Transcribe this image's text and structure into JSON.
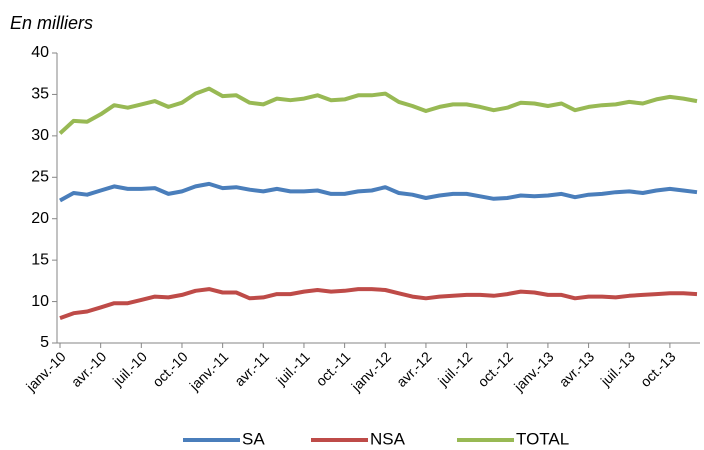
{
  "chart_data": {
    "type": "line",
    "subtitle": "En milliers",
    "categories": [
      "janv.-10",
      null,
      null,
      "avr.-10",
      null,
      null,
      "juil.-10",
      null,
      null,
      "oct.-10",
      null,
      null,
      "janv.-11",
      null,
      null,
      "avr.-11",
      null,
      null,
      "juil.-11",
      null,
      null,
      "oct.-11",
      null,
      null,
      "janv.-12",
      null,
      null,
      "avr.-12",
      null,
      null,
      "juil.-12",
      null,
      null,
      "oct.-12",
      null,
      null,
      "janv.-13",
      null,
      null,
      "avr.-13",
      null,
      null,
      "juil.-13",
      null,
      null,
      "oct.-13",
      null,
      null
    ],
    "series": [
      {
        "name": "SA",
        "color": "#4a7ebb",
        "values": [
          22.2,
          23.1,
          22.9,
          23.4,
          23.9,
          23.6,
          23.6,
          23.7,
          23.0,
          23.3,
          23.9,
          24.2,
          23.7,
          23.8,
          23.5,
          23.3,
          23.6,
          23.3,
          23.3,
          23.4,
          23.0,
          23.0,
          23.3,
          23.4,
          23.8,
          23.1,
          22.9,
          22.5,
          22.8,
          23.0,
          23.0,
          22.7,
          22.4,
          22.5,
          22.8,
          22.7,
          22.8,
          23.0,
          22.6,
          22.9,
          23.0,
          23.2,
          23.3,
          23.1,
          23.4,
          23.6,
          23.4,
          23.2
        ]
      },
      {
        "name": "NSA",
        "color": "#be4b48",
        "values": [
          8.0,
          8.6,
          8.8,
          9.3,
          9.8,
          9.8,
          10.2,
          10.6,
          10.5,
          10.8,
          11.3,
          11.5,
          11.1,
          11.1,
          10.4,
          10.5,
          10.9,
          10.9,
          11.2,
          11.4,
          11.2,
          11.3,
          11.5,
          11.5,
          11.4,
          11.0,
          10.6,
          10.4,
          10.6,
          10.7,
          10.8,
          10.8,
          10.7,
          10.9,
          11.2,
          11.1,
          10.8,
          10.8,
          10.4,
          10.6,
          10.6,
          10.5,
          10.7,
          10.8,
          10.9,
          11.0,
          11.0,
          10.9
        ]
      },
      {
        "name": "TOTAL",
        "color": "#98b954",
        "values": [
          30.3,
          31.8,
          31.7,
          32.6,
          33.7,
          33.4,
          33.8,
          34.2,
          33.5,
          34.0,
          35.1,
          35.7,
          34.8,
          34.9,
          34.0,
          33.8,
          34.5,
          34.3,
          34.5,
          34.9,
          34.3,
          34.4,
          34.9,
          34.9,
          35.1,
          34.1,
          33.6,
          33.0,
          33.5,
          33.8,
          33.8,
          33.5,
          33.1,
          33.4,
          34.0,
          33.9,
          33.6,
          33.9,
          33.1,
          33.5,
          33.7,
          33.8,
          34.1,
          33.9,
          34.4,
          34.7,
          34.5,
          34.2
        ]
      }
    ],
    "ylim": [
      5,
      40
    ],
    "yticks": [
      5,
      10,
      15,
      20,
      25,
      30,
      35,
      40
    ],
    "grid": false,
    "legend": "bottom"
  }
}
